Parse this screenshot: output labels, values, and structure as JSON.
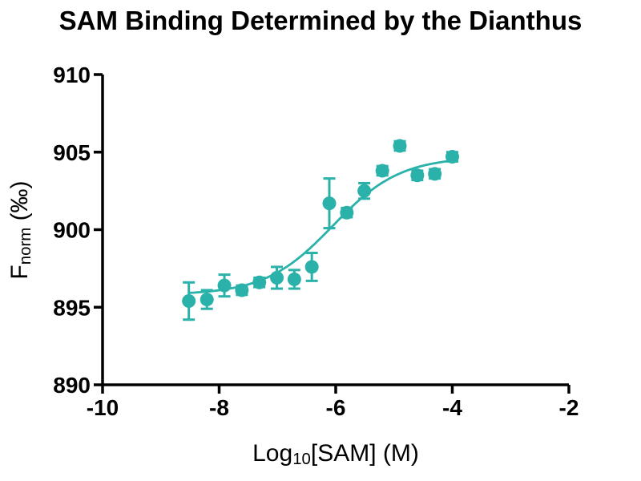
{
  "chart_data": {
    "type": "scatter",
    "title": "SAM Binding Determined by the Dianthus",
    "xlabel": {
      "main": "Log",
      "sub": "10",
      "suffix": "[SAM] (M)"
    },
    "ylabel": {
      "main": "F",
      "sub": "norm",
      "suffix": " (‰)"
    },
    "axes": {
      "x": {
        "min": -10,
        "max": -2,
        "ticks": [
          -10,
          -8,
          -6,
          -4,
          -2
        ],
        "tick_labels": [
          "-10",
          "-8",
          "-6",
          "-4",
          "-2"
        ]
      },
      "y": {
        "min": 890,
        "max": 910,
        "ticks": [
          890,
          895,
          900,
          905,
          910
        ],
        "tick_labels": [
          "890",
          "895",
          "900",
          "905",
          "910"
        ]
      }
    },
    "grid": false,
    "legend": false,
    "colors": {
      "series": "#2AB2AA",
      "axis": "#000000",
      "text": "#000000",
      "background": "#FFFFFF"
    },
    "points": [
      {
        "x": -8.52,
        "y": 895.4,
        "err": 1.2
      },
      {
        "x": -8.21,
        "y": 895.5,
        "err": 0.6
      },
      {
        "x": -7.91,
        "y": 896.4,
        "err": 0.7
      },
      {
        "x": -7.61,
        "y": 896.1,
        "err": 0.3
      },
      {
        "x": -7.31,
        "y": 896.6,
        "err": 0.3
      },
      {
        "x": -7.01,
        "y": 896.9,
        "err": 0.7
      },
      {
        "x": -6.71,
        "y": 896.8,
        "err": 0.6
      },
      {
        "x": -6.41,
        "y": 897.6,
        "err": 0.9
      },
      {
        "x": -6.11,
        "y": 901.7,
        "err": 1.6
      },
      {
        "x": -5.81,
        "y": 901.1,
        "err": 0.3
      },
      {
        "x": -5.51,
        "y": 902.5,
        "err": 0.5
      },
      {
        "x": -5.2,
        "y": 903.8,
        "err": 0.3
      },
      {
        "x": -4.9,
        "y": 905.4,
        "err": 0.3
      },
      {
        "x": -4.6,
        "y": 903.5,
        "err": 0.3
      },
      {
        "x": -4.3,
        "y": 903.6,
        "err": 0.3
      },
      {
        "x": -4.0,
        "y": 904.7,
        "err": 0.3
      }
    ],
    "fit": {
      "model": "4PL",
      "bottom": 895.8,
      "top": 904.7,
      "log_ec50": -6.05,
      "hill": 0.75,
      "x_start": -8.52,
      "x_end": -4.0
    }
  }
}
